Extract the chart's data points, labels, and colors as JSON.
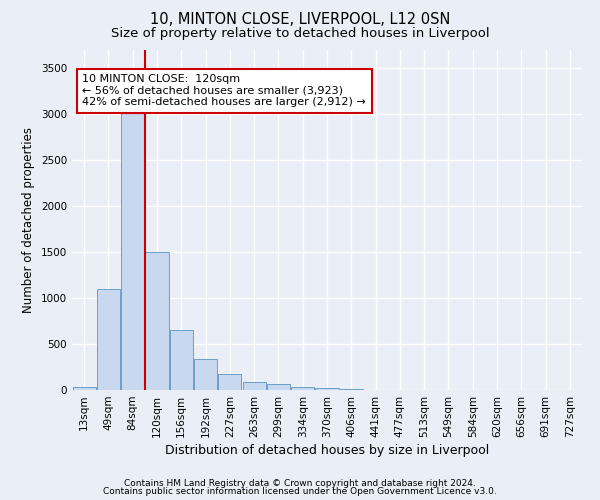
{
  "title1": "10, MINTON CLOSE, LIVERPOOL, L12 0SN",
  "title2": "Size of property relative to detached houses in Liverpool",
  "xlabel": "Distribution of detached houses by size in Liverpool",
  "ylabel": "Number of detached properties",
  "categories": [
    "13sqm",
    "49sqm",
    "84sqm",
    "120sqm",
    "156sqm",
    "192sqm",
    "227sqm",
    "263sqm",
    "299sqm",
    "334sqm",
    "370sqm",
    "406sqm",
    "441sqm",
    "477sqm",
    "513sqm",
    "549sqm",
    "584sqm",
    "620sqm",
    "656sqm",
    "691sqm",
    "727sqm"
  ],
  "values": [
    30,
    1100,
    3430,
    1500,
    650,
    340,
    175,
    90,
    60,
    35,
    20,
    10,
    5,
    3,
    2,
    1,
    1,
    0,
    0,
    0,
    0
  ],
  "bar_color": "#c8d8ee",
  "bar_edge_color": "#6a9fc8",
  "vertical_line_color": "#cc0000",
  "annotation_text": "10 MINTON CLOSE:  120sqm\n← 56% of detached houses are smaller (3,923)\n42% of semi-detached houses are larger (2,912) →",
  "annotation_box_color": "#ffffff",
  "annotation_border_color": "#cc0000",
  "ylim": [
    0,
    3700
  ],
  "yticks": [
    0,
    500,
    1000,
    1500,
    2000,
    2500,
    3000,
    3500
  ],
  "bg_color": "#eaeff7",
  "plot_bg_color": "#eaeff7",
  "grid_color": "#ffffff",
  "footer1": "Contains HM Land Registry data © Crown copyright and database right 2024.",
  "footer2": "Contains public sector information licensed under the Open Government Licence v3.0.",
  "title1_fontsize": 10.5,
  "title2_fontsize": 9.5,
  "xlabel_fontsize": 9,
  "ylabel_fontsize": 8.5,
  "tick_fontsize": 7.5,
  "annotation_fontsize": 8,
  "footer_fontsize": 6.5
}
